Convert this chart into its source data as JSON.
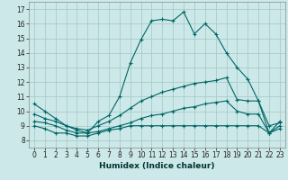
{
  "xlabel": "Humidex (Indice chaleur)",
  "xlim": [
    -0.5,
    23.5
  ],
  "ylim": [
    7.5,
    17.5
  ],
  "xticks": [
    0,
    1,
    2,
    3,
    4,
    5,
    6,
    7,
    8,
    9,
    10,
    11,
    12,
    13,
    14,
    15,
    16,
    17,
    18,
    19,
    20,
    21,
    22,
    23
  ],
  "yticks": [
    8,
    9,
    10,
    11,
    12,
    13,
    14,
    15,
    16,
    17
  ],
  "bg_color": "#cce8e8",
  "grid_color": "#aacccc",
  "line_color": "#006666",
  "lines": [
    {
      "x": [
        0,
        1,
        2,
        3,
        4,
        5,
        6,
        7,
        8,
        9,
        10,
        11,
        12,
        13,
        14,
        15,
        16,
        17,
        18,
        19,
        20,
        21,
        22,
        23
      ],
      "y": [
        10.5,
        10.0,
        9.5,
        9.0,
        8.7,
        8.5,
        9.3,
        9.7,
        11.0,
        13.3,
        14.9,
        16.2,
        16.3,
        16.2,
        16.8,
        15.3,
        16.0,
        15.3,
        14.0,
        13.0,
        12.2,
        10.7,
        8.5,
        9.3
      ]
    },
    {
      "x": [
        0,
        1,
        2,
        3,
        4,
        5,
        6,
        7,
        8,
        9,
        10,
        11,
        12,
        13,
        14,
        15,
        16,
        17,
        18,
        19,
        20,
        21,
        22,
        23
      ],
      "y": [
        9.8,
        9.5,
        9.3,
        9.0,
        8.8,
        8.7,
        9.0,
        9.3,
        9.7,
        10.2,
        10.7,
        11.0,
        11.3,
        11.5,
        11.7,
        11.9,
        12.0,
        12.1,
        12.3,
        10.8,
        10.7,
        10.7,
        9.0,
        9.2
      ]
    },
    {
      "x": [
        0,
        1,
        2,
        3,
        4,
        5,
        6,
        7,
        8,
        9,
        10,
        11,
        12,
        13,
        14,
        15,
        16,
        17,
        18,
        19,
        20,
        21,
        22,
        23
      ],
      "y": [
        9.3,
        9.2,
        9.0,
        8.7,
        8.5,
        8.5,
        8.6,
        8.8,
        9.0,
        9.2,
        9.5,
        9.7,
        9.8,
        10.0,
        10.2,
        10.3,
        10.5,
        10.6,
        10.7,
        10.0,
        9.8,
        9.8,
        8.5,
        8.8
      ]
    },
    {
      "x": [
        0,
        1,
        2,
        3,
        4,
        5,
        6,
        7,
        8,
        9,
        10,
        11,
        12,
        13,
        14,
        15,
        16,
        17,
        18,
        19,
        20,
        21,
        22,
        23
      ],
      "y": [
        9.0,
        8.8,
        8.5,
        8.5,
        8.3,
        8.3,
        8.5,
        8.7,
        8.8,
        9.0,
        9.0,
        9.0,
        9.0,
        9.0,
        9.0,
        9.0,
        9.0,
        9.0,
        9.0,
        9.0,
        9.0,
        9.0,
        8.5,
        9.0
      ]
    }
  ]
}
